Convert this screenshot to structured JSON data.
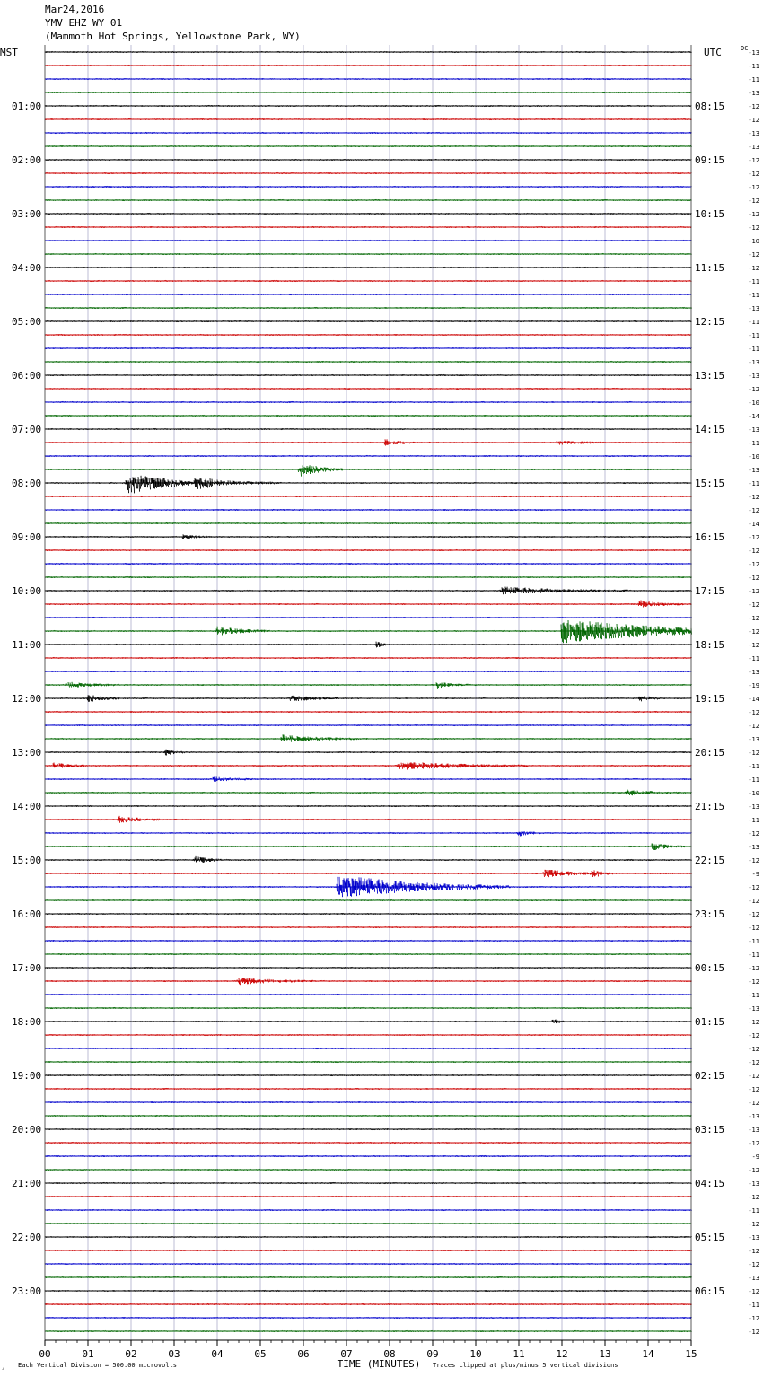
{
  "header": {
    "date": "Mar24,2016",
    "station": "YMV EHZ WY 01",
    "location": "(Mammoth Hot Springs, Yellowstone Park, WY)"
  },
  "left_axis_label": "MST",
  "right_axis_label": "UTC",
  "dc_label": "DC",
  "footer": {
    "scale_note": "Each Vertical Division =  500.00 microvolts",
    "xlabel": "TIME (MINUTES)",
    "clip_note": "Traces clipped at plus/minus 5 vertical divisions"
  },
  "colors": {
    "cycle": [
      "#000000",
      "#cc0000",
      "#0000cc",
      "#006600"
    ],
    "grid": "#9090b8"
  },
  "chart_data": {
    "type": "line",
    "title": "YMV EHZ WY 01",
    "xlabel": "TIME (MINUTES)",
    "xlim": [
      0,
      15
    ],
    "x_ticks": [
      "00",
      "01",
      "02",
      "03",
      "04",
      "05",
      "06",
      "07",
      "08",
      "09",
      "10",
      "11",
      "12",
      "13",
      "14",
      "15"
    ],
    "minutes_per_trace": 15,
    "trace_count": 96,
    "mst_labels": [
      "01:00",
      "02:00",
      "03:00",
      "04:00",
      "05:00",
      "06:00",
      "07:00",
      "08:00",
      "09:00",
      "10:00",
      "11:00",
      "12:00",
      "13:00",
      "14:00",
      "15:00",
      "16:00",
      "17:00",
      "18:00",
      "19:00",
      "20:00",
      "21:00",
      "22:00",
      "23:00"
    ],
    "utc_labels": [
      "08:15",
      "09:15",
      "10:15",
      "11:15",
      "12:15",
      "13:15",
      "14:15",
      "15:15",
      "16:15",
      "17:15",
      "18:15",
      "19:15",
      "20:15",
      "21:15",
      "22:15",
      "23:15",
      "00:15",
      "01:15",
      "02:15",
      "03:15",
      "04:15",
      "05:15",
      "06:15"
    ],
    "dc_offsets": [
      "-13",
      "-11",
      "-11",
      "-13",
      "-12",
      "-12",
      "-13",
      "-13",
      "-12",
      "-12",
      "-12",
      "-12",
      "-12",
      "-12",
      "-10",
      "-12",
      "-12",
      "-11",
      "-11",
      "-13",
      "-11",
      "-11",
      "-11",
      "-13",
      "-13",
      "-12",
      "-10",
      "-14",
      "-13",
      "-11",
      "-10",
      "-13",
      "-11",
      "-12",
      "-12",
      "-14",
      "-12",
      "-12",
      "-12",
      "-12",
      "-12",
      "-12",
      "-12",
      "-12",
      "-12",
      "-11",
      "-13",
      "-19",
      "-14",
      "-12",
      "-12",
      "-13",
      "-12",
      "-11",
      "-11",
      "-10",
      "-13",
      "-11",
      "-12",
      "-13",
      "-12",
      "-9",
      "-12",
      "-12",
      "-12",
      "-12",
      "-11",
      "-11",
      "-12",
      "-12",
      "-11",
      "-13",
      "-12",
      "-12",
      "-12",
      "-12",
      "-12",
      "-12",
      "-12",
      "-13",
      "-13",
      "-12",
      "-9",
      "-12",
      "-13",
      "-12",
      "-11",
      "-12",
      "-13",
      "-12",
      "-12",
      "-13",
      "-12",
      "-11",
      "-12",
      "-12"
    ],
    "events": [
      {
        "trace": 29,
        "minute": 7.9,
        "amp": 0.35,
        "dur": 0.3
      },
      {
        "trace": 29,
        "minute": 11.9,
        "amp": 0.2,
        "dur": 0.5
      },
      {
        "trace": 31,
        "minute": 5.9,
        "amp": 0.8,
        "dur": 0.4
      },
      {
        "trace": 32,
        "minute": 1.9,
        "amp": 1.3,
        "dur": 0.8
      },
      {
        "trace": 32,
        "minute": 3.5,
        "amp": 0.5,
        "dur": 0.8
      },
      {
        "trace": 36,
        "minute": 3.2,
        "amp": 0.2,
        "dur": 0.3
      },
      {
        "trace": 40,
        "minute": 10.6,
        "amp": 0.4,
        "dur": 1.2
      },
      {
        "trace": 41,
        "minute": 13.8,
        "amp": 0.4,
        "dur": 0.4
      },
      {
        "trace": 43,
        "minute": 4.0,
        "amp": 0.5,
        "dur": 0.5
      },
      {
        "trace": 43,
        "minute": 12.0,
        "amp": 1.4,
        "dur": 2.0
      },
      {
        "trace": 44,
        "minute": 7.7,
        "amp": 0.4,
        "dur": 0.1
      },
      {
        "trace": 47,
        "minute": 0.5,
        "amp": 0.3,
        "dur": 0.5
      },
      {
        "trace": 47,
        "minute": 9.1,
        "amp": 0.3,
        "dur": 0.3
      },
      {
        "trace": 48,
        "minute": 1.0,
        "amp": 0.4,
        "dur": 0.3
      },
      {
        "trace": 48,
        "minute": 5.7,
        "amp": 0.3,
        "dur": 0.5
      },
      {
        "trace": 48,
        "minute": 13.8,
        "amp": 0.4,
        "dur": 0.2
      },
      {
        "trace": 51,
        "minute": 5.5,
        "amp": 0.4,
        "dur": 0.7
      },
      {
        "trace": 52,
        "minute": 2.8,
        "amp": 0.35,
        "dur": 0.2
      },
      {
        "trace": 53,
        "minute": 0.2,
        "amp": 0.35,
        "dur": 0.3
      },
      {
        "trace": 53,
        "minute": 8.2,
        "amp": 0.45,
        "dur": 1.2
      },
      {
        "trace": 54,
        "minute": 3.9,
        "amp": 0.25,
        "dur": 0.4
      },
      {
        "trace": 55,
        "minute": 13.5,
        "amp": 0.3,
        "dur": 0.5
      },
      {
        "trace": 57,
        "minute": 1.7,
        "amp": 0.4,
        "dur": 0.4
      },
      {
        "trace": 58,
        "minute": 11.0,
        "amp": 0.3,
        "dur": 0.2
      },
      {
        "trace": 59,
        "minute": 14.1,
        "amp": 0.4,
        "dur": 0.3
      },
      {
        "trace": 60,
        "minute": 3.5,
        "amp": 0.35,
        "dur": 0.3
      },
      {
        "trace": 61,
        "minute": 11.6,
        "amp": 0.5,
        "dur": 0.5
      },
      {
        "trace": 61,
        "minute": 12.7,
        "amp": 0.4,
        "dur": 0.2
      },
      {
        "trace": 62,
        "minute": 6.8,
        "amp": 1.4,
        "dur": 1.6
      },
      {
        "trace": 69,
        "minute": 4.5,
        "amp": 0.35,
        "dur": 0.7
      },
      {
        "trace": 72,
        "minute": 11.8,
        "amp": 0.3,
        "dur": 0.1
      }
    ]
  }
}
